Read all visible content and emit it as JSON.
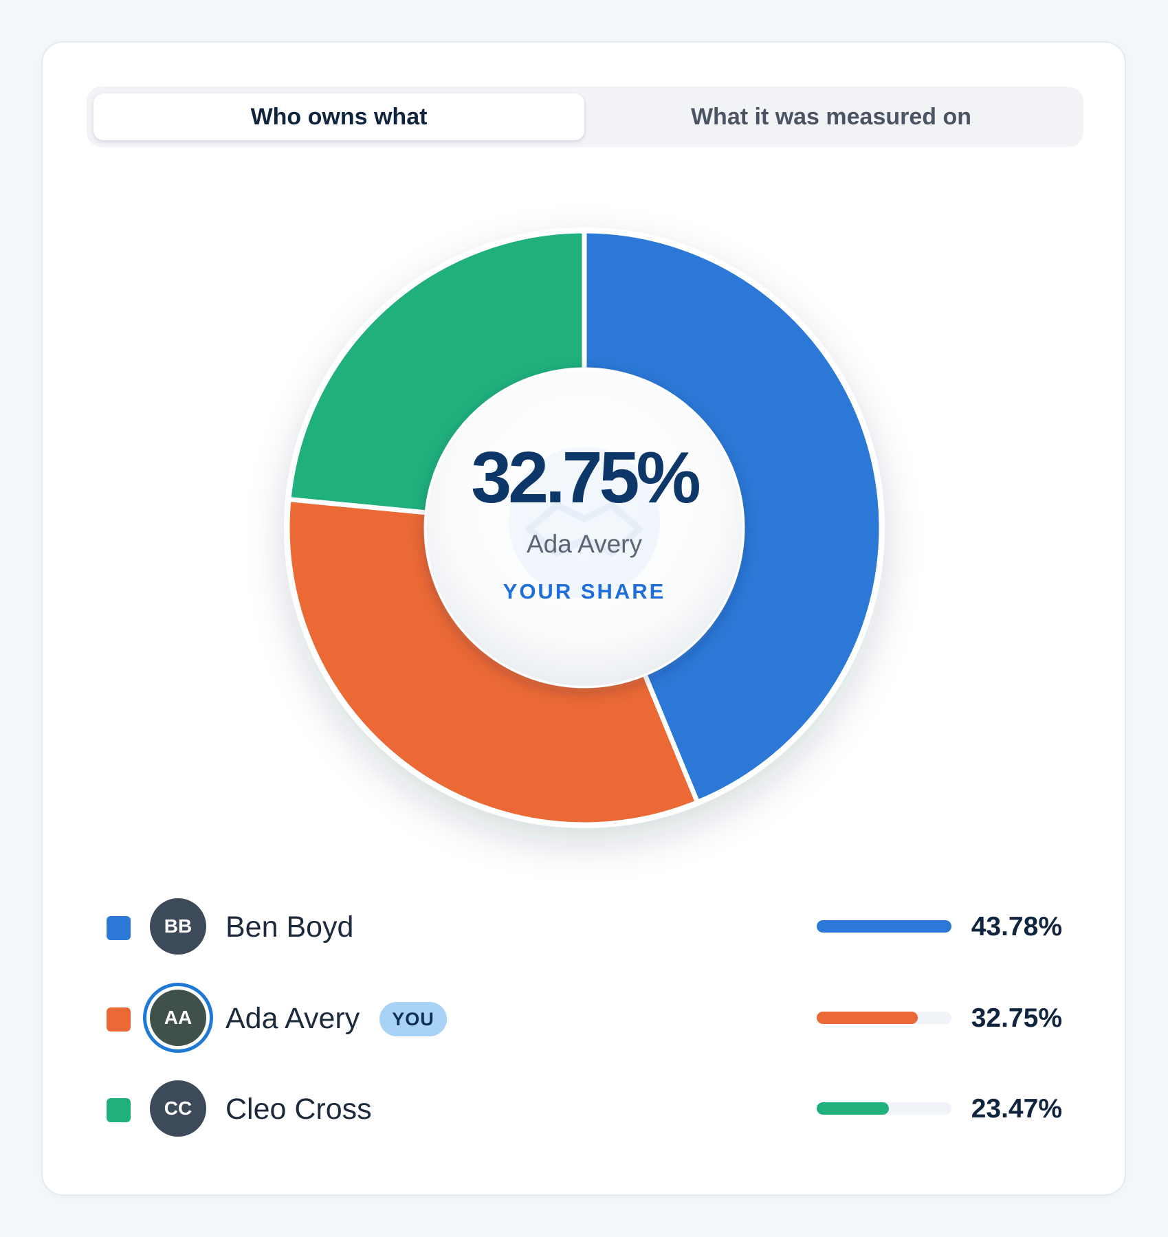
{
  "tabs": [
    {
      "label": "Who owns what",
      "active": true
    },
    {
      "label": "What it was measured on",
      "active": false
    }
  ],
  "center": {
    "value": "32.75%",
    "name": "Ada Avery",
    "label": "YOUR SHARE"
  },
  "you_badge": "YOU",
  "chart_data": {
    "type": "pie",
    "style": "donut",
    "categories": [
      "Ben Boyd",
      "Ada Avery",
      "Cleo Cross"
    ],
    "values": [
      43.78,
      32.75,
      23.47
    ],
    "value_labels": [
      "43.78%",
      "32.75%",
      "23.47%"
    ],
    "colors": [
      "#2b78d6",
      "#ea6935",
      "#1fb07c"
    ],
    "initials": [
      "BB",
      "AA",
      "CC"
    ],
    "highlighted": "Ada Avery",
    "legend": "bottom"
  },
  "colors": {
    "avatar_default": "#3c4a5a",
    "avatar_you": "#3f5149",
    "you_ring": "#1e78d6",
    "accent": "#1e6fd9"
  },
  "icons": {
    "center_watermark": "handshake-icon"
  }
}
